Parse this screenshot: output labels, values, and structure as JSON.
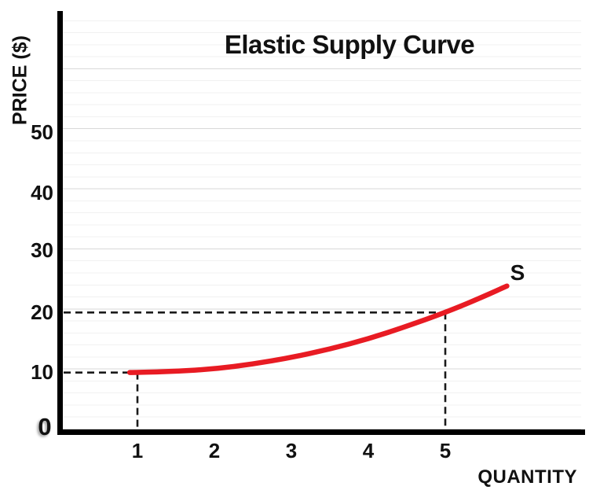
{
  "chart_data": {
    "type": "line",
    "title": "Elastic Supply Curve",
    "xlabel": "QUANTITY",
    "ylabel": "PRICE ($)",
    "xlim": [
      0,
      6.7
    ],
    "ylim": [
      0,
      70
    ],
    "xticks": [
      "1",
      "2",
      "3",
      "4",
      "5"
    ],
    "yticks": [
      "0",
      "10",
      "20",
      "30",
      "40",
      "50"
    ],
    "grid": {
      "minor_step": 2,
      "major_step": 10,
      "minor_color": "#f1f1f1",
      "major_color": "#d9d9d9"
    },
    "axis_color": "#000000",
    "guide_line_color": "#1a1a1a",
    "legend_position": "end-of-line-label",
    "series": [
      {
        "name": "S",
        "color": "#e81b23",
        "points": [
          [
            0.9,
            10.0
          ],
          [
            1.0,
            10.0
          ],
          [
            1.5,
            10.2
          ],
          [
            2.0,
            10.6
          ],
          [
            2.5,
            11.4
          ],
          [
            3.0,
            12.5
          ],
          [
            3.5,
            13.9
          ],
          [
            4.0,
            15.6
          ],
          [
            4.5,
            17.7
          ],
          [
            5.0,
            20.0
          ],
          [
            5.4,
            22.1
          ],
          [
            5.8,
            24.4
          ]
        ]
      }
    ],
    "guide_points": [
      {
        "x": 1,
        "y": 10
      },
      {
        "x": 5,
        "y": 20
      }
    ]
  }
}
